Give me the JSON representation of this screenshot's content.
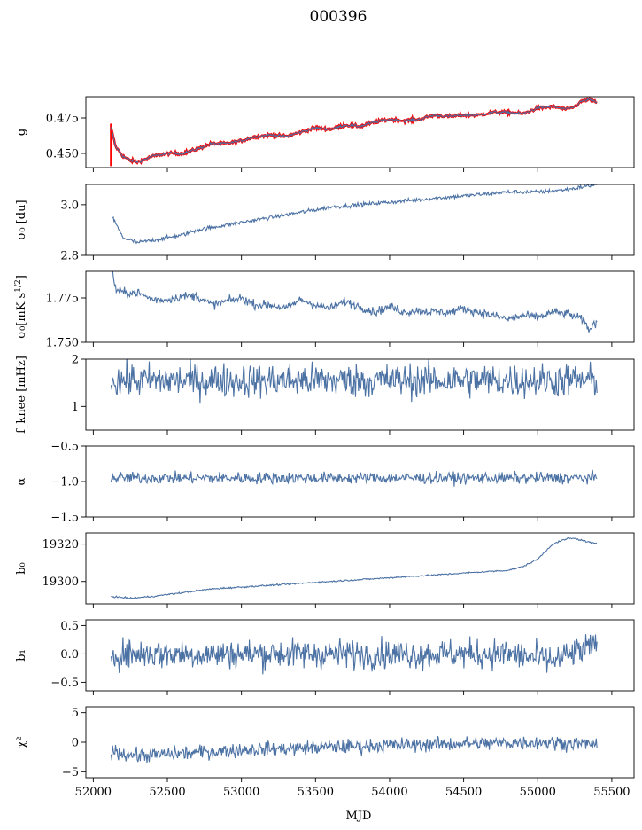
{
  "figure": {
    "title": "000396"
  },
  "chart_data": {
    "type": "line",
    "xlabel": "MJD",
    "xlim": [
      51950,
      55650
    ],
    "xticks": [
      52000,
      52500,
      53000,
      53500,
      54000,
      54500,
      55000,
      55500
    ],
    "xtick_labels": [
      "52000",
      "52500",
      "53000",
      "53500",
      "54000",
      "54500",
      "55000",
      "55500"
    ],
    "series_color": "#4c72a4",
    "overlay_color": "#ff0000",
    "panels": [
      {
        "id": "g",
        "ylabel": "g",
        "ylim": [
          0.44,
          0.49
        ],
        "yticks": [
          0.45,
          0.475
        ],
        "ytick_labels": [
          "0.450",
          "0.475"
        ],
        "x": [
          52120,
          52150,
          52200,
          52250,
          52300,
          52400,
          52500,
          52600,
          52700,
          52800,
          52900,
          53000,
          53100,
          53200,
          53300,
          53400,
          53500,
          53600,
          53700,
          53800,
          53900,
          54000,
          54100,
          54200,
          54300,
          54400,
          54500,
          54600,
          54700,
          54800,
          54900,
          55000,
          55100,
          55200,
          55250,
          55300,
          55350,
          55400
        ],
        "y": [
          0.468,
          0.455,
          0.448,
          0.445,
          0.444,
          0.448,
          0.45,
          0.45,
          0.453,
          0.457,
          0.457,
          0.459,
          0.462,
          0.463,
          0.462,
          0.465,
          0.468,
          0.467,
          0.47,
          0.469,
          0.472,
          0.474,
          0.473,
          0.474,
          0.477,
          0.476,
          0.477,
          0.477,
          0.479,
          0.479,
          0.478,
          0.482,
          0.483,
          0.481,
          0.483,
          0.487,
          0.488,
          0.486
        ],
        "overlay": true,
        "noise": 0.0005
      },
      {
        "id": "sigma0-du",
        "ylabel": "σ₀ [du]",
        "ylim": [
          2.8,
          3.08
        ],
        "yticks": [
          2.8,
          3.0
        ],
        "ytick_labels": [
          "2.8",
          "3.0"
        ],
        "x": [
          52130,
          52200,
          52300,
          52400,
          52500,
          52600,
          52700,
          52800,
          52900,
          53000,
          53200,
          53400,
          53600,
          53800,
          54000,
          54200,
          54400,
          54600,
          54800,
          55000,
          55200,
          55300,
          55400
        ],
        "y": [
          2.95,
          2.87,
          2.85,
          2.86,
          2.87,
          2.88,
          2.9,
          2.91,
          2.92,
          2.93,
          2.95,
          2.97,
          2.99,
          3.0,
          3.01,
          3.02,
          3.03,
          3.04,
          3.05,
          3.05,
          3.06,
          3.07,
          3.08
        ],
        "noise": 0.004
      },
      {
        "id": "sigma0-mk",
        "ylabel": "σ₀[mK s^1/2]",
        "ylim": [
          1.75,
          1.79
        ],
        "yticks": [
          1.75,
          1.775
        ],
        "ytick_labels": [
          "1.750",
          "1.775"
        ],
        "x": [
          52130,
          52150,
          52200,
          52300,
          52400,
          52500,
          52600,
          52700,
          52800,
          52900,
          53000,
          53100,
          53200,
          53300,
          53400,
          53500,
          53600,
          53700,
          53800,
          53900,
          54000,
          54100,
          54200,
          54300,
          54400,
          54500,
          54600,
          54700,
          54800,
          54900,
          55000,
          55100,
          55200,
          55300,
          55350,
          55400
        ],
        "y": [
          1.79,
          1.78,
          1.778,
          1.778,
          1.774,
          1.774,
          1.776,
          1.776,
          1.771,
          1.773,
          1.775,
          1.771,
          1.771,
          1.769,
          1.774,
          1.771,
          1.769,
          1.773,
          1.77,
          1.767,
          1.77,
          1.767,
          1.768,
          1.767,
          1.767,
          1.769,
          1.767,
          1.765,
          1.763,
          1.765,
          1.764,
          1.767,
          1.766,
          1.763,
          1.757,
          1.762
        ],
        "noise": 0.0012
      },
      {
        "id": "fknee",
        "ylabel": "f_knee [mHz]",
        "ylim": [
          0.5,
          2.0
        ],
        "yticks": [
          1,
          2
        ],
        "ytick_labels": [
          "1",
          "2"
        ],
        "x": [
          52120,
          55400
        ],
        "y": [
          1.55,
          1.55
        ],
        "noise": 0.18
      },
      {
        "id": "alpha",
        "ylabel": "α",
        "ylim": [
          -1.5,
          -0.5
        ],
        "yticks": [
          -1.5,
          -1.0,
          -0.5
        ],
        "ytick_labels": [
          "−1.5",
          "−1.0",
          "−0.5"
        ],
        "x": [
          52120,
          55400
        ],
        "y": [
          -0.95,
          -0.95
        ],
        "noise": 0.04
      },
      {
        "id": "b0",
        "ylabel": "b₀",
        "ylim": [
          19288,
          19326
        ],
        "yticks": [
          19300,
          19320
        ],
        "ytick_labels": [
          "19300",
          "19320"
        ],
        "x": [
          52120,
          52250,
          52400,
          52600,
          52800,
          53000,
          53200,
          53400,
          53600,
          53800,
          54000,
          54200,
          54400,
          54600,
          54800,
          54900,
          55000,
          55100,
          55200,
          55250,
          55300,
          55400
        ],
        "y": [
          19292,
          19291,
          19292,
          19294,
          19296,
          19297,
          19298,
          19299,
          19300,
          19301,
          19302,
          19303,
          19304,
          19305,
          19306,
          19308,
          19312,
          19320,
          19323,
          19323,
          19322,
          19320
        ],
        "noise": 0.2
      },
      {
        "id": "b1",
        "ylabel": "b₁",
        "ylim": [
          -0.65,
          0.6
        ],
        "yticks": [
          -0.5,
          0.0,
          0.5
        ],
        "ytick_labels": [
          "−0.5",
          "0.0",
          "0.5"
        ],
        "x": [
          52120,
          54800,
          55100,
          55400
        ],
        "y": [
          0.0,
          0.0,
          -0.12,
          0.15
        ],
        "noise": 0.13
      },
      {
        "id": "chi2",
        "ylabel": "χ²",
        "ylim": [
          -6,
          6
        ],
        "yticks": [
          -5,
          0,
          5
        ],
        "ytick_labels": [
          "−5",
          "0",
          "5"
        ],
        "x": [
          52120,
          52300,
          53000,
          54000,
          55000,
          55400
        ],
        "y": [
          -1.5,
          -2.3,
          -1.3,
          -0.5,
          0.0,
          -0.3
        ],
        "noise": 0.6
      }
    ]
  }
}
